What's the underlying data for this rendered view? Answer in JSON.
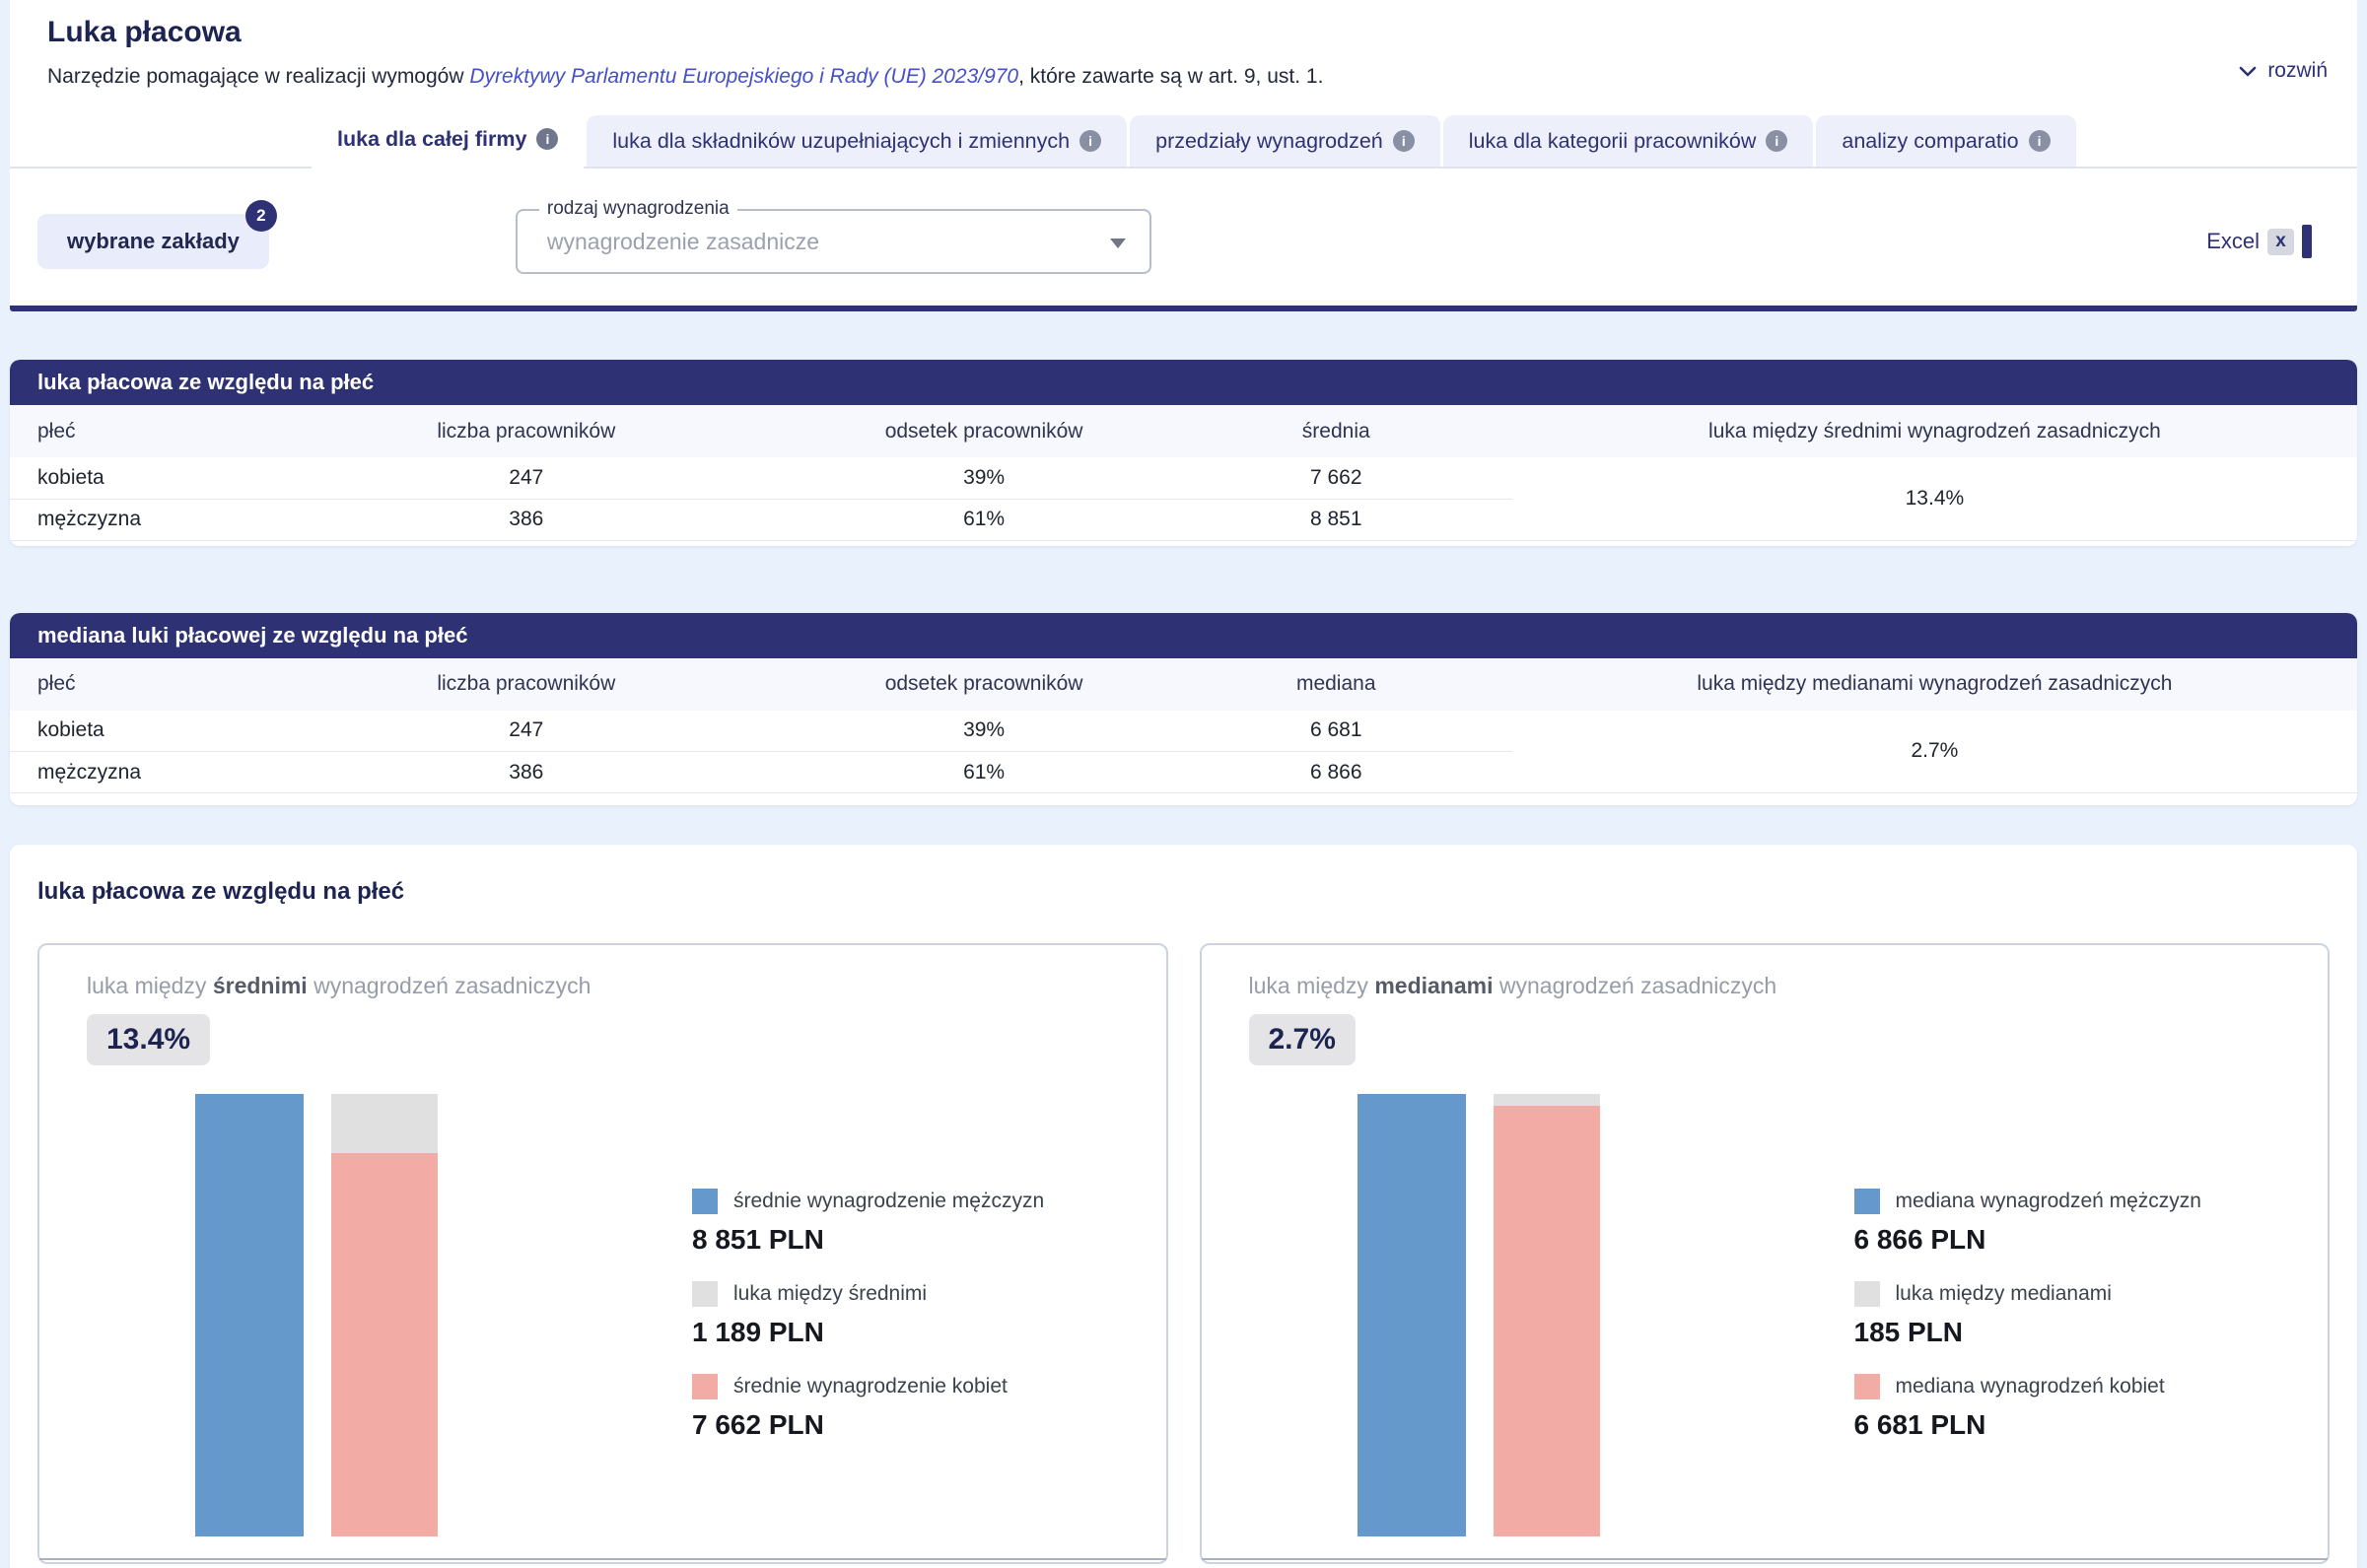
{
  "header": {
    "title": "Luka płacowa",
    "subtitle_prefix": "Narzędzie pomagające w realizacji wymogów ",
    "subtitle_link": "Dyrektywy Parlamentu Europejskiego i Rady (UE) 2023/970",
    "subtitle_suffix": ", które zawarte są w art. 9, ust. 1.",
    "expand_label": "rozwiń"
  },
  "tabs": [
    {
      "label": "luka dla całej firmy",
      "active": true
    },
    {
      "label": "luka dla składników uzupełniających i zmiennych",
      "active": false
    },
    {
      "label": "przedziały wynagrodzeń",
      "active": false
    },
    {
      "label": "luka dla kategorii pracowników",
      "active": false
    },
    {
      "label": "analizy comparatio",
      "active": false
    }
  ],
  "filters": {
    "plants_button": "wybrane zakłady",
    "plants_badge": "2",
    "salary_type_label": "rodzaj wynagrodzenia",
    "salary_type_value": "wynagrodzenie zasadnicze",
    "excel_label": "Excel",
    "excel_icon_letter": "x"
  },
  "tables": [
    {
      "title": "luka płacowa ze względu na płeć",
      "columns": [
        "płeć",
        "liczba pracowników",
        "odsetek pracowników",
        "średnia",
        "luka między średnimi wynagrodzeń zasadniczych"
      ],
      "rows": [
        [
          "kobieta",
          "247",
          "39%",
          "7 662"
        ],
        [
          "mężczyzna",
          "386",
          "61%",
          "8 851"
        ]
      ],
      "gap_value": "13.4%"
    },
    {
      "title": "mediana luki płacowej ze względu na płeć",
      "columns": [
        "płeć",
        "liczba pracowników",
        "odsetek pracowników",
        "mediana",
        "luka między medianami wynagrodzeń zasadniczych"
      ],
      "rows": [
        [
          "kobieta",
          "247",
          "39%",
          "6 681"
        ],
        [
          "mężczyzna",
          "386",
          "61%",
          "6 866"
        ]
      ],
      "gap_value": "2.7%"
    }
  ],
  "charts_section": {
    "heading": "luka płacowa ze względu na płeć",
    "cards": [
      {
        "title_prefix": "luka między ",
        "title_bold": "średnimi",
        "title_suffix": " wynagrodzeń zasadniczych",
        "badge": "13.4%",
        "legend": [
          {
            "label": "średnie wynagrodzenie mężczyzn",
            "value": "8 851 PLN",
            "color": "#6699cb"
          },
          {
            "label": "luka między średnimi",
            "value": "1 189 PLN",
            "color": "#e0e0e0"
          },
          {
            "label": "średnie wynagrodzenie kobiet",
            "value": "7 662 PLN",
            "color": "#f3aba5"
          }
        ]
      },
      {
        "title_prefix": "luka między ",
        "title_bold": "medianami",
        "title_suffix": " wynagrodzeń zasadniczych",
        "badge": "2.7%",
        "legend": [
          {
            "label": "mediana wynagrodzeń mężczyzn",
            "value": "6 866 PLN",
            "color": "#6699cb"
          },
          {
            "label": "luka między medianami",
            "value": "185 PLN",
            "color": "#e0e0e0"
          },
          {
            "label": "mediana wynagrodzeń kobiet",
            "value": "6 681 PLN",
            "color": "#f3aba5"
          }
        ]
      }
    ]
  },
  "chart_data": [
    {
      "type": "bar",
      "title": "luka między średnimi wynagrodzeń zasadniczych",
      "unit": "PLN",
      "gap_percent": 13.4,
      "bars": [
        {
          "name": "średnie wynagrodzenie mężczyzn",
          "value": 8851
        },
        {
          "name": "średnie wynagrodzenie kobiet",
          "value": 7662,
          "gap_segment": 1189
        }
      ]
    },
    {
      "type": "bar",
      "title": "luka między medianami wynagrodzeń zasadniczych",
      "unit": "PLN",
      "gap_percent": 2.7,
      "bars": [
        {
          "name": "mediana wynagrodzeń mężczyzn",
          "value": 6866
        },
        {
          "name": "mediana wynagrodzeń kobiet",
          "value": 6681,
          "gap_segment": 185
        }
      ]
    }
  ]
}
